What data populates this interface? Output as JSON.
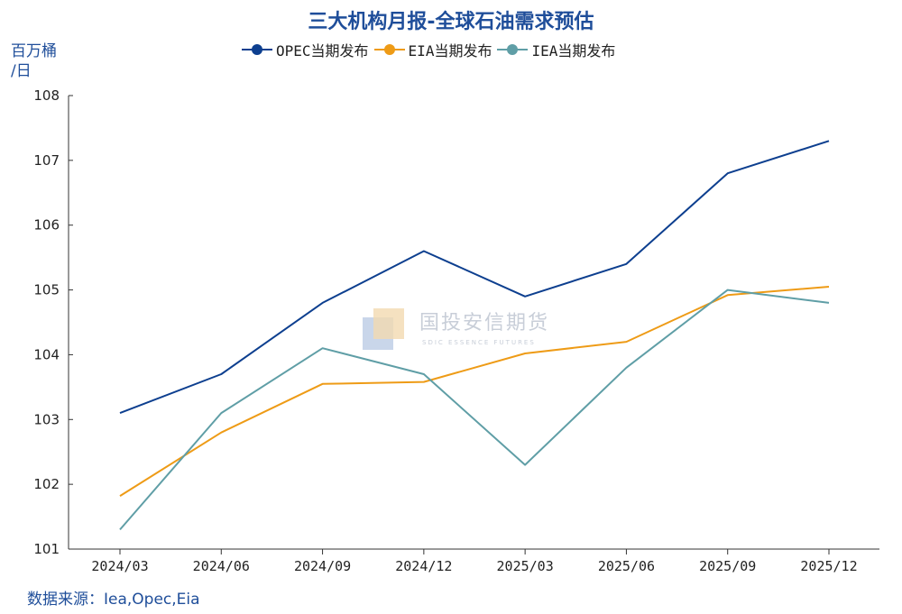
{
  "title": "三大机构月报-全球石油需求预估",
  "unit_label": "百万桶\n/日",
  "source": "数据来源：Iea,Opec,Eia",
  "watermark": {
    "name": "国投安信期货",
    "sub": "SDIC ESSENCE FUTURES"
  },
  "chart_data": {
    "type": "line",
    "title": "三大机构月报-全球石油需求预估",
    "ylabel": "百万桶/日",
    "xlabel": "",
    "categories": [
      "2024/03",
      "2024/06",
      "2024/09",
      "2024/12",
      "2025/03",
      "2025/06",
      "2025/09",
      "2025/12"
    ],
    "ylim": [
      101,
      108
    ],
    "yticks": [
      101,
      102,
      103,
      104,
      105,
      106,
      107,
      108
    ],
    "grid": false,
    "legend_position": "top-center",
    "series": [
      {
        "name": "OPEC当期发布",
        "color": "#0d3f8f",
        "values": [
          103.1,
          103.7,
          104.8,
          105.6,
          104.9,
          105.4,
          106.8,
          107.3
        ]
      },
      {
        "name": "EIA当期发布",
        "color": "#ee9b16",
        "values": [
          101.82,
          102.8,
          103.55,
          103.58,
          104.02,
          104.2,
          104.92,
          105.05
        ]
      },
      {
        "name": "IEA当期发布",
        "color": "#5f9ea6",
        "values": [
          101.3,
          103.1,
          104.1,
          103.7,
          102.3,
          103.8,
          105.0,
          104.8
        ]
      }
    ]
  }
}
